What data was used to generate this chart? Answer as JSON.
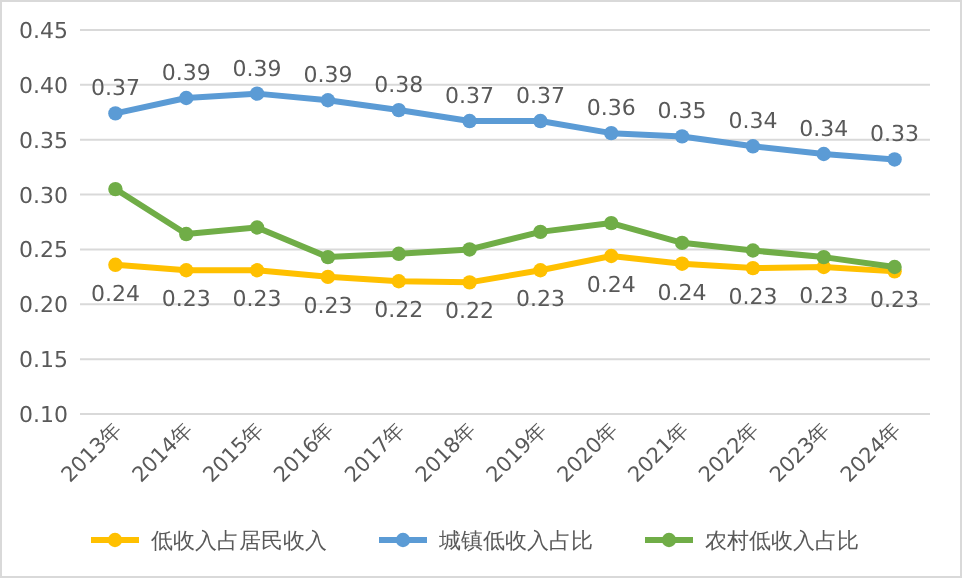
{
  "chart_data": {
    "type": "line",
    "categories": [
      "2013年",
      "2014年",
      "2015年",
      "2016年",
      "2017年",
      "2018年",
      "2019年",
      "2020年",
      "2021年",
      "2022年",
      "2023年",
      "2024年"
    ],
    "series": [
      {
        "name": "低收入占居民收入",
        "color": "#ffc000",
        "values": [
          0.236,
          0.231,
          0.231,
          0.225,
          0.221,
          0.22,
          0.231,
          0.244,
          0.237,
          0.233,
          0.234,
          0.23
        ],
        "value_labels": [
          "0.24",
          "0.23",
          "0.23",
          "0.23",
          "0.22",
          "0.22",
          "0.23",
          "0.24",
          "0.24",
          "0.23",
          "0.23",
          "0.23"
        ]
      },
      {
        "name": "城镇低收入占比",
        "color": "#5b9bd5",
        "values": [
          0.374,
          0.388,
          0.392,
          0.386,
          0.377,
          0.367,
          0.367,
          0.356,
          0.353,
          0.344,
          0.337,
          0.332
        ],
        "value_labels": [
          "0.37",
          "0.39",
          "0.39",
          "0.39",
          "0.38",
          "0.37",
          "0.37",
          "0.36",
          "0.35",
          "0.34",
          "0.34",
          "0.33"
        ]
      },
      {
        "name": "农村低收入占比",
        "color": "#70ad47",
        "values": [
          0.305,
          0.264,
          0.27,
          0.243,
          0.246,
          0.25,
          0.266,
          0.274,
          0.256,
          0.249,
          0.243,
          0.234
        ]
      }
    ],
    "ylim": [
      0.1,
      0.45
    ],
    "yticks": [
      {
        "value": 0.1,
        "label": "0.10"
      },
      0.15,
      {
        "value": 0.2,
        "label": "0.20"
      },
      0.25,
      {
        "value": 0.3,
        "label": "0.30"
      },
      0.35,
      {
        "value": 0.4,
        "label": "0.40"
      },
      0.45
    ],
    "grid": "y",
    "legend": "bottom",
    "marker": "circle",
    "line_style": "solid"
  }
}
